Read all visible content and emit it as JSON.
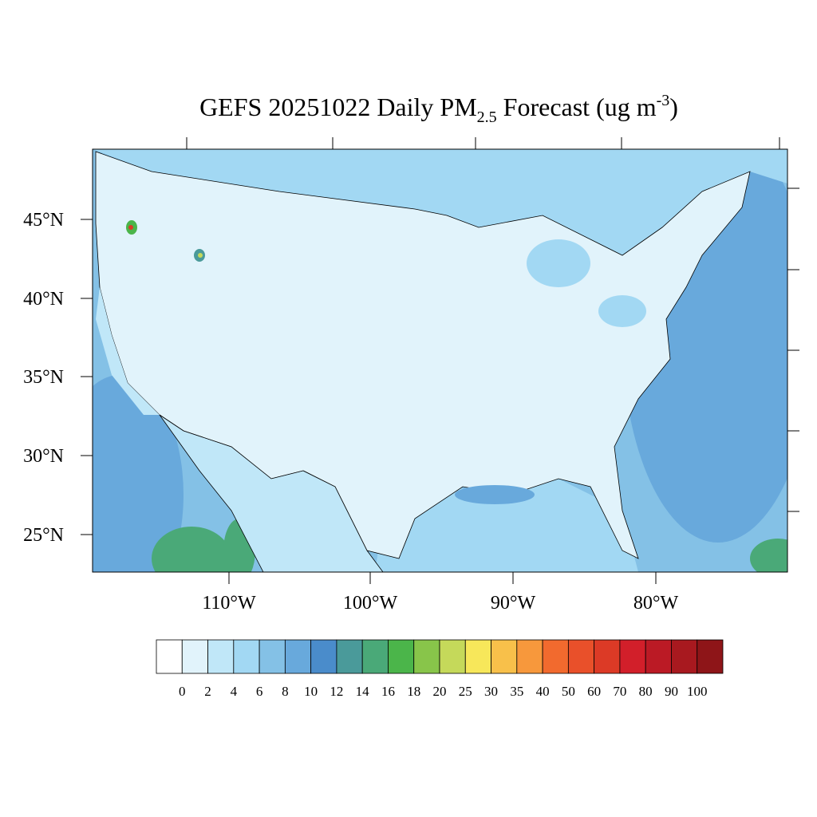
{
  "title": {
    "main": "GEFS 20251022 Daily PM",
    "sub": "2.5",
    "mid": " Forecast (ug m",
    "sup": "-3",
    "end": ")"
  },
  "map": {
    "lat_labels": [
      "45°N",
      "40°N",
      "35°N",
      "30°N",
      "25°N"
    ],
    "lon_labels": [
      "110°W",
      "100°W",
      "90°W",
      "80°W"
    ]
  },
  "colorbar": {
    "levels": [
      0,
      2,
      4,
      6,
      8,
      10,
      12,
      14,
      16,
      18,
      20,
      25,
      30,
      35,
      40,
      50,
      60,
      70,
      80,
      90,
      100
    ],
    "colors": [
      "#ffffff",
      "#e1f3fb",
      "#c0e7f8",
      "#a2d8f3",
      "#84c1e6",
      "#68a9dc",
      "#4a8ccb",
      "#4a9a9a",
      "#4aa978",
      "#4bb54a",
      "#88c54a",
      "#c5d95a",
      "#f7e75a",
      "#f8c04a",
      "#f7983c",
      "#f26a2e",
      "#e9502a",
      "#dc3a26",
      "#d21f2a",
      "#bb1a25",
      "#a8191f",
      "#8e1518"
    ]
  }
}
